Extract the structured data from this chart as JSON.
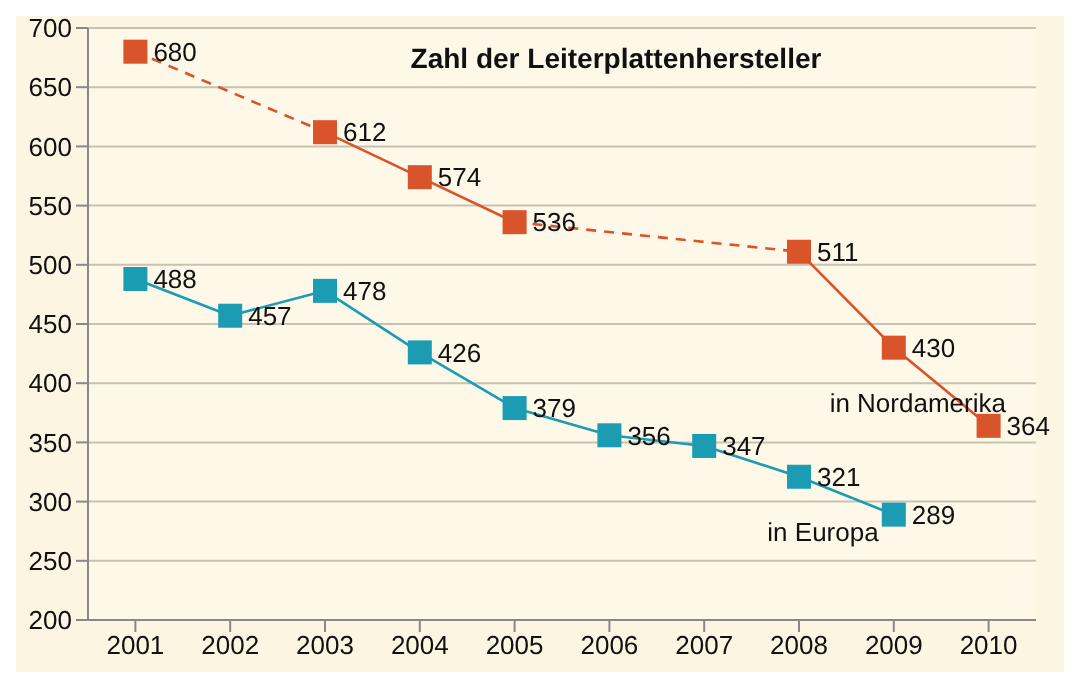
{
  "chart_data": {
    "type": "line",
    "title": "Zahl der Leiterplattenhersteller",
    "categories": [
      "2001",
      "2002",
      "2003",
      "2004",
      "2005",
      "2006",
      "2007",
      "2008",
      "2009",
      "2010"
    ],
    "series": [
      {
        "name": "in Nordamerika",
        "color": "#d9532b",
        "values": [
          680,
          null,
          612,
          574,
          536,
          null,
          null,
          511,
          430,
          364
        ]
      },
      {
        "name": "in Europa",
        "color": "#1b9cb3",
        "values": [
          488,
          457,
          478,
          426,
          379,
          356,
          347,
          321,
          289,
          null
        ]
      }
    ],
    "ylim": [
      200,
      700
    ],
    "yticks": [
      200,
      250,
      300,
      350,
      400,
      450,
      500,
      550,
      600,
      650,
      700
    ],
    "grid": "y",
    "legend": false,
    "marker": "square",
    "data_labels": true
  }
}
